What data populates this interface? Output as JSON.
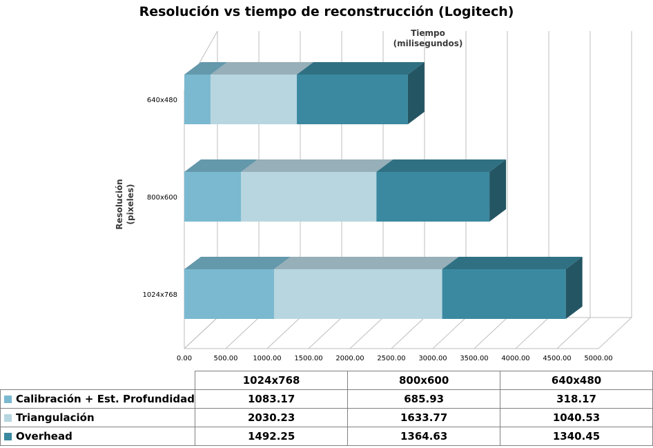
{
  "chart_data": {
    "type": "bar",
    "orientation": "horizontal",
    "stacked": true,
    "three_d": true,
    "title": "Resolución vs tiempo de reconstrucción (Logitech)",
    "xlabel_line1": "Tiempo",
    "xlabel_line2": "(milisegundos)",
    "ylabel_line1": "Resolución",
    "ylabel_line2": "(pixeles)",
    "categories": [
      "1024x768",
      "800x600",
      "640x480"
    ],
    "xlim": [
      0,
      5000
    ],
    "xticks": [
      "0.00",
      "500.00",
      "1000.00",
      "1500.00",
      "2000.00",
      "2500.00",
      "3000.00",
      "3500.00",
      "4000.00",
      "4500.00",
      "5000.00"
    ],
    "grid": true,
    "series": [
      {
        "name": "Calibración + Est. Profundidad",
        "values": [
          1083.17,
          685.93,
          318.17
        ],
        "color": "#7ab9d0"
      },
      {
        "name": "Triangulación",
        "values": [
          2030.23,
          1633.77,
          1040.53
        ],
        "color": "#b7d6e0"
      },
      {
        "name": "Overhead",
        "values": [
          1492.25,
          1364.63,
          1340.45
        ],
        "color": "#3a89a0"
      }
    ]
  },
  "table": {
    "headers": [
      "1024x768",
      "800x600",
      "640x480"
    ],
    "rows": [
      {
        "label": "Calibración + Est. Profundidad",
        "values": [
          "1083.17",
          "685.93",
          "318.17"
        ]
      },
      {
        "label": "Triangulación",
        "values": [
          "2030.23",
          "1633.77",
          "1040.53"
        ]
      },
      {
        "label": "Overhead",
        "values": [
          "1492.25",
          "1364.63",
          "1340.45"
        ]
      }
    ]
  }
}
